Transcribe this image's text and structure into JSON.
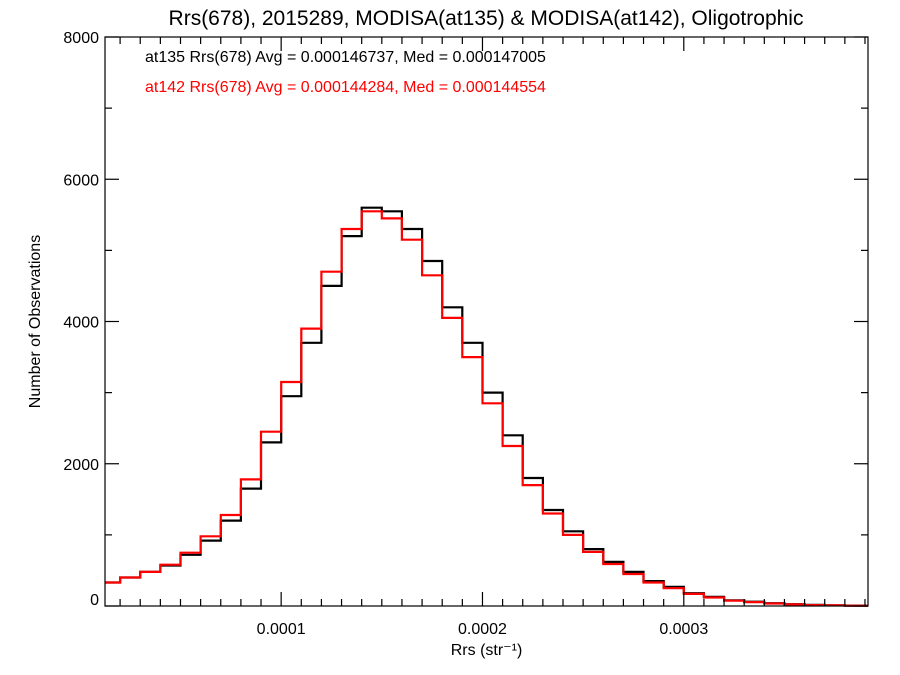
{
  "chart_data": {
    "type": "line",
    "title": "Rrs(678), 2015289, MODISA(at135) & MODISA(at142), Oligotrophic",
    "xlabel": "Rrs (str⁻¹)",
    "ylabel": "Number of Observations",
    "xlim": [
      1.25e-05,
      0.0003915
    ],
    "ylim": [
      0,
      8000
    ],
    "x_ticks": [
      0.0001,
      0.0002,
      0.0003
    ],
    "x_tick_labels": [
      "0.0001",
      "0.0002",
      "0.0003"
    ],
    "y_ticks": [
      0,
      2000,
      4000,
      6000,
      8000
    ],
    "y_tick_labels": [
      "0",
      "2000",
      "4000",
      "6000",
      "8000"
    ],
    "step_style": "histogram",
    "x": [
      1.25e-05,
      2e-05,
      3e-05,
      4e-05,
      5e-05,
      6e-05,
      7e-05,
      8e-05,
      9e-05,
      0.0001,
      0.00011,
      0.00012,
      0.00013,
      0.00014,
      0.00015,
      0.00016,
      0.00017,
      0.00018,
      0.00019,
      0.0002,
      0.00021,
      0.00022,
      0.00023,
      0.00024,
      0.00025,
      0.00026,
      0.00027,
      0.00028,
      0.00029,
      0.0003,
      0.00031,
      0.00032,
      0.00033,
      0.00034,
      0.00035,
      0.00036,
      0.00037,
      0.00038,
      0.00039
    ],
    "series": [
      {
        "name": "at135",
        "color": "#000000",
        "values": [
          330,
          400,
          480,
          570,
          720,
          920,
          1200,
          1650,
          2300,
          2950,
          3700,
          4500,
          5200,
          5600,
          5550,
          5300,
          4850,
          4200,
          3700,
          3000,
          2400,
          1800,
          1350,
          1050,
          800,
          620,
          480,
          350,
          270,
          180,
          130,
          80,
          60,
          40,
          25,
          15,
          10,
          5,
          3
        ]
      },
      {
        "name": "at142",
        "color": "#ff0000",
        "values": [
          330,
          400,
          480,
          580,
          750,
          980,
          1280,
          1780,
          2450,
          3150,
          3900,
          4700,
          5300,
          5550,
          5450,
          5150,
          4650,
          4050,
          3500,
          2850,
          2250,
          1700,
          1300,
          1000,
          760,
          590,
          450,
          330,
          250,
          170,
          120,
          75,
          55,
          35,
          22,
          13,
          8,
          4,
          2
        ]
      }
    ],
    "annotations": [
      {
        "text": "at135 Rrs(678) Avg = 0.000146737, Med = 0.000147005",
        "color": "#000000"
      },
      {
        "text": "at142 Rrs(678) Avg = 0.000144284, Med = 0.000144554",
        "color": "#ff0000"
      }
    ],
    "grid": false,
    "legend": "none"
  }
}
